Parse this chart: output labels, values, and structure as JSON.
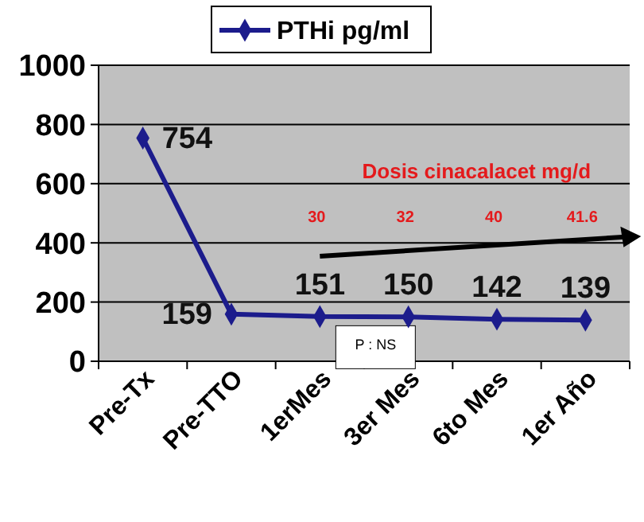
{
  "chart_data": {
    "type": "line",
    "categories": [
      "Pre-Tx",
      "Pre-TTO",
      "1erMes",
      "3er Mes",
      "6to Mes",
      "1er Año"
    ],
    "series": [
      {
        "name": "PTHi pg/ml",
        "color": "#1c1c8c",
        "values": [
          754,
          159,
          151,
          150,
          142,
          139
        ]
      }
    ],
    "ylim": [
      0,
      1000
    ],
    "yticks": [
      0,
      200,
      400,
      600,
      800,
      1000
    ],
    "grid": "y",
    "legend": "top",
    "marker": "diamond",
    "line_style": "solid",
    "data_labels": true,
    "annotations": [
      "Dosis cinacalacet mg/d",
      "30",
      "32",
      "40",
      "41.6",
      "P : NS"
    ]
  }
}
